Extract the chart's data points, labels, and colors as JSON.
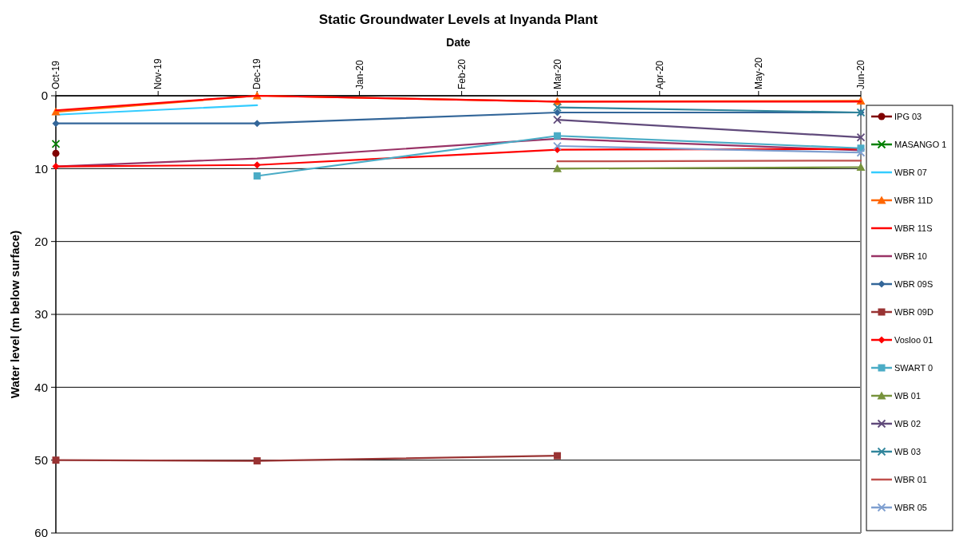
{
  "chart_data": {
    "type": "line",
    "title": "Static Groundwater Levels at Inyanda Plant",
    "xlabel": "Date",
    "ylabel": "Water level (m below surface)",
    "x": [
      "2019-10",
      "2019-12",
      "2020-03",
      "2020-06"
    ],
    "xlim": [
      "2019-10",
      "2020-06"
    ],
    "xticks": [
      {
        "value": "2019-10",
        "label": "Oct-19"
      },
      {
        "value": "2019-11",
        "label": "Nov-19"
      },
      {
        "value": "2019-12",
        "label": "Dec-19"
      },
      {
        "value": "2020-01",
        "label": "Jan-20"
      },
      {
        "value": "2020-02",
        "label": "Feb-20"
      },
      {
        "value": "2020-03",
        "label": "Mar-20"
      },
      {
        "value": "2020-04",
        "label": "Apr-20"
      },
      {
        "value": "2020-05",
        "label": "May-20"
      },
      {
        "value": "2020-06",
        "label": "Jun-20"
      }
    ],
    "ylim": [
      60,
      0
    ],
    "yticks": [
      0,
      10,
      20,
      30,
      40,
      50,
      60
    ],
    "grid": "y",
    "legend": "right",
    "series": [
      {
        "name": "IPG 03",
        "color": "#800000",
        "marker": "circle",
        "values": [
          7.9,
          null,
          null,
          null
        ]
      },
      {
        "name": "MASANGO 1",
        "color": "#008000",
        "marker": "cross",
        "values": [
          6.6,
          null,
          null,
          null
        ]
      },
      {
        "name": "WBR 07",
        "color": "#33ccff",
        "marker": "none",
        "values": [
          2.6,
          1.3,
          null,
          null
        ]
      },
      {
        "name": "WBR 11D",
        "color": "#ff6600",
        "marker": "triangle",
        "values": [
          2.2,
          0,
          0.8,
          0.7
        ]
      },
      {
        "name": "WBR 11S",
        "color": "#ff0000",
        "marker": "none",
        "values": [
          2.0,
          0,
          0.8,
          0.8
        ]
      },
      {
        "name": "WBR 10",
        "color": "#993366",
        "marker": "none",
        "values": [
          9.7,
          8.6,
          5.9,
          7.5
        ]
      },
      {
        "name": "WBR 09S",
        "color": "#336699",
        "marker": "diamond",
        "values": [
          3.8,
          3.8,
          2.3,
          2.3
        ]
      },
      {
        "name": "WBR 09D",
        "color": "#993333",
        "marker": "square",
        "values": [
          50.0,
          50.1,
          49.4,
          null
        ]
      },
      {
        "name": "Vosloo 01",
        "color": "#ff0000",
        "marker": "diamond",
        "values": [
          9.7,
          9.5,
          7.4,
          7.3
        ]
      },
      {
        "name": "SWART 0",
        "color": "#4bacc6",
        "marker": "square",
        "values": [
          null,
          11.0,
          5.5,
          7.2
        ]
      },
      {
        "name": "WB 01",
        "color": "#77933c",
        "marker": "triangle",
        "values": [
          null,
          null,
          10.0,
          9.8
        ]
      },
      {
        "name": "WB 02",
        "color": "#604a7b",
        "marker": "cross",
        "values": [
          null,
          null,
          3.3,
          5.7
        ]
      },
      {
        "name": "WB 03",
        "color": "#31859c",
        "marker": "cross",
        "values": [
          null,
          null,
          1.6,
          2.3
        ]
      },
      {
        "name": "WBR 01",
        "color": "#c0504d",
        "marker": "none",
        "values": [
          null,
          null,
          9.0,
          8.9
        ]
      },
      {
        "name": "WBR 05",
        "color": "#7f9fd0",
        "marker": "cross",
        "values": [
          null,
          null,
          6.9,
          7.8
        ]
      }
    ]
  }
}
